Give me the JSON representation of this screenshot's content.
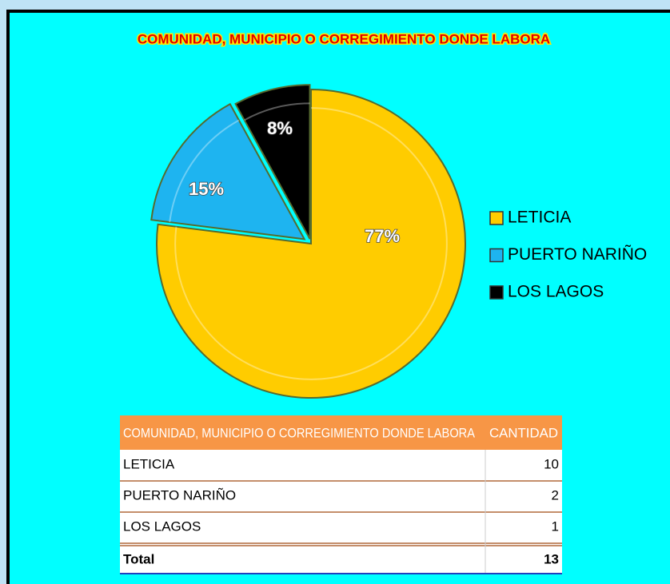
{
  "chart_data": {
    "type": "pie",
    "title": "COMUNIDAD, MUNICIPIO O CORREGIMIENTO DONDE LABORA",
    "categories": [
      "LETICIA",
      "PUERTO NARIÑO",
      "LOS LAGOS"
    ],
    "values": [
      77,
      15,
      8
    ],
    "value_labels": [
      "77%",
      "15%",
      "8%"
    ],
    "colors": [
      "#FFCC00",
      "#1EB4F0",
      "#000000"
    ],
    "legend": "right"
  },
  "table": {
    "header": [
      "COMUNIDAD, MUNICIPIO O CORREGIMIENTO DONDE LABORA",
      "CANTIDAD"
    ],
    "rows": [
      [
        "LETICIA",
        "10"
      ],
      [
        "PUERTO NARIÑO",
        "2"
      ],
      [
        "LOS LAGOS",
        "1"
      ]
    ],
    "total": [
      "Total",
      "13"
    ]
  }
}
